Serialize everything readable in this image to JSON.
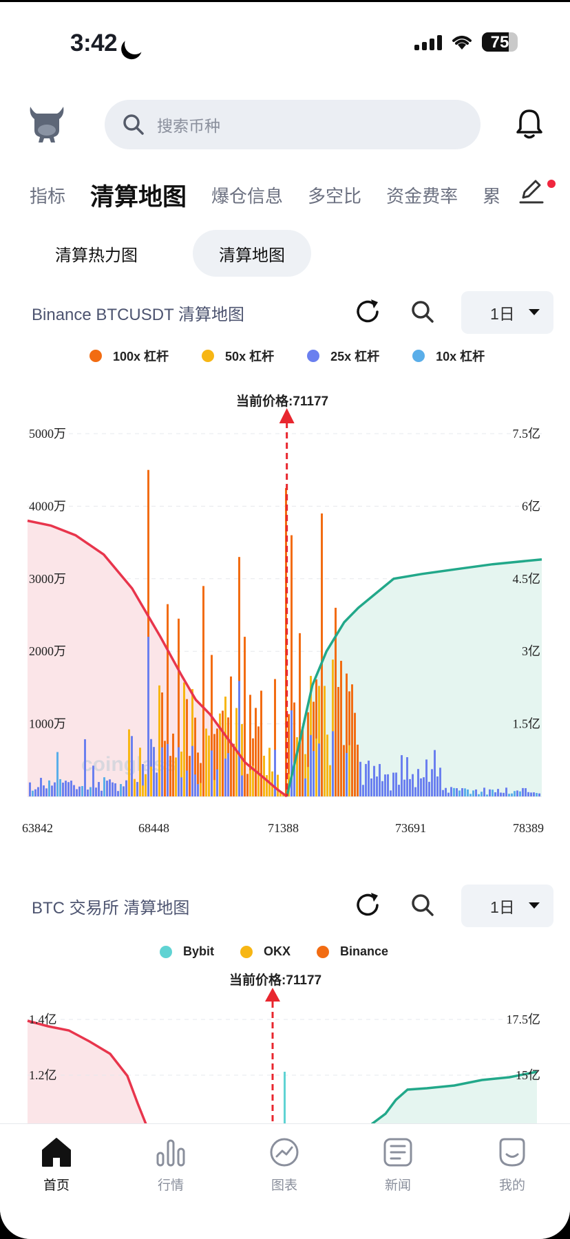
{
  "status_bar": {
    "time": "3:42",
    "battery": "75"
  },
  "header": {
    "search_placeholder": "搜索币种"
  },
  "category_tabs": [
    "指标",
    "清算地图",
    "爆仓信息",
    "多空比",
    "资金费率",
    "累"
  ],
  "active_category": "清算地图",
  "sub_tabs": [
    "清算热力图",
    "清算地图"
  ],
  "active_sub_tab": "清算地图",
  "section1": {
    "title": "Binance BTCUSDT 清算地图",
    "period": "1日",
    "legend": [
      {
        "label": "100x 杠杆",
        "color": "#f26c12"
      },
      {
        "label": "50x 杠杆",
        "color": "#f7b614"
      },
      {
        "label": "25x 杠杆",
        "color": "#6a7fef"
      },
      {
        "label": "10x 杠杆",
        "color": "#5aaee9"
      }
    ],
    "current_price_label": "当前价格:71177",
    "watermark": "coinglass"
  },
  "section2": {
    "title": "BTC 交易所  清算地图",
    "period": "1日",
    "legend": [
      {
        "label": "Bybit",
        "color": "#5fd3d3"
      },
      {
        "label": "OKX",
        "color": "#f7b614"
      },
      {
        "label": "Binance",
        "color": "#f26c12"
      }
    ],
    "current_price_label": "当前价格:71177"
  },
  "chart_data": [
    {
      "type": "bar",
      "x_tick_labels": [
        "63842",
        "68448",
        "71388",
        "73691",
        "78389"
      ],
      "left_axis_labels": [
        "1000万",
        "2000万",
        "3000万",
        "4000万",
        "5000万"
      ],
      "right_axis_labels": [
        "1.5亿",
        "3亿",
        "4.5亿",
        "6亿",
        "7.5亿"
      ],
      "ylim_left": [
        0,
        50000000
      ],
      "ylim_right": [
        0,
        750000000
      ],
      "current_price": 71177,
      "series": [
        {
          "name": "100x 杠杆",
          "kind": "bar"
        },
        {
          "name": "50x 杠杆",
          "kind": "bar"
        },
        {
          "name": "25x 杠杆",
          "kind": "bar"
        },
        {
          "name": "10x 杠杆",
          "kind": "bar"
        }
      ],
      "cumulative_short": {
        "color": "#e8354c",
        "x": [
          63842,
          64500,
          65200,
          66000,
          66800,
          67600,
          68200,
          68600,
          69000,
          69500,
          70000,
          70500,
          70900,
          71177
        ],
        "y": [
          570000000,
          560000000,
          540000000,
          500000000,
          430000000,
          330000000,
          250000000,
          200000000,
          170000000,
          120000000,
          70000000,
          40000000,
          15000000,
          0
        ]
      },
      "cumulative_long": {
        "color": "#22a88a",
        "x": [
          71177,
          71500,
          71900,
          72300,
          72800,
          73200,
          73700,
          74200,
          75000,
          76000,
          77000,
          78389
        ],
        "y": [
          0,
          100000000,
          230000000,
          300000000,
          360000000,
          390000000,
          420000000,
          450000000,
          460000000,
          470000000,
          480000000,
          490000000
        ]
      }
    },
    {
      "type": "bar",
      "left_axis_labels": [
        "1.2亿",
        "1.4亿"
      ],
      "right_axis_labels": [
        "15亿",
        "17.5亿"
      ],
      "current_price": 71177,
      "series": [
        {
          "name": "Bybit",
          "kind": "bar"
        },
        {
          "name": "OKX",
          "kind": "bar"
        },
        {
          "name": "Binance",
          "kind": "bar"
        }
      ]
    }
  ],
  "bottom_nav": [
    "首页",
    "行情",
    "图表",
    "新闻",
    "我的"
  ],
  "active_nav": "首页"
}
